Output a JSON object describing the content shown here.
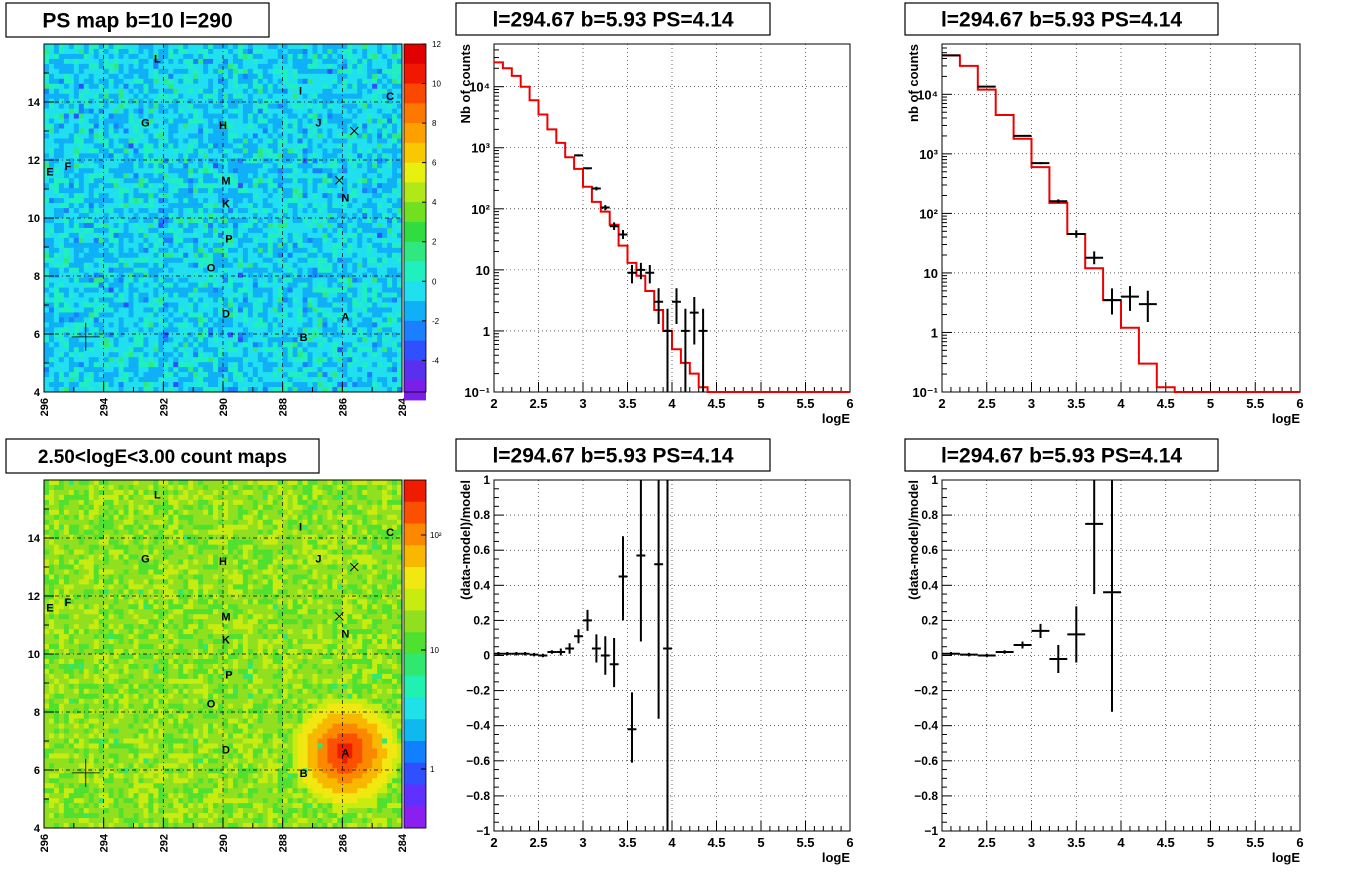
{
  "panels": [
    {
      "kind": "map",
      "title": "PS map b=10 l=290",
      "x_ticks": [
        "296",
        "294",
        "292",
        "290",
        "288",
        "286",
        "284"
      ],
      "y_ticks": [
        "4",
        "6",
        "8",
        "10",
        "12",
        "14"
      ],
      "colorbar_labels": [
        "12",
        "10",
        "8",
        "6",
        "4",
        "2",
        "0",
        "-2",
        "-4"
      ],
      "sources": [
        {
          "label": "L",
          "l": 292.2,
          "b": 15.5
        },
        {
          "label": "I",
          "l": 287.4,
          "b": 14.4
        },
        {
          "label": "C",
          "l": 284.4,
          "b": 14.2
        },
        {
          "label": "G",
          "l": 292.6,
          "b": 13.3
        },
        {
          "label": "H",
          "l": 290.0,
          "b": 13.2
        },
        {
          "label": "J",
          "l": 286.8,
          "b": 13.3
        },
        {
          "label": "E",
          "l": 295.8,
          "b": 11.6
        },
        {
          "label": "F",
          "l": 295.2,
          "b": 11.8
        },
        {
          "label": "M",
          "l": 289.9,
          "b": 11.3
        },
        {
          "label": "K",
          "l": 289.9,
          "b": 10.5
        },
        {
          "label": "N",
          "l": 285.9,
          "b": 10.7
        },
        {
          "label": "P",
          "l": 289.8,
          "b": 9.3
        },
        {
          "label": "O",
          "l": 290.4,
          "b": 8.3
        },
        {
          "label": "D",
          "l": 289.9,
          "b": 6.7
        },
        {
          "label": "A",
          "l": 285.9,
          "b": 6.6
        },
        {
          "label": "B",
          "l": 287.3,
          "b": 5.9
        }
      ],
      "markers": [
        {
          "symbol": "x",
          "l": 285.6,
          "b": 13.0
        },
        {
          "symbol": "x",
          "l": 286.1,
          "b": 11.3
        },
        {
          "symbol": "+",
          "l": 294.6,
          "b": 5.9
        }
      ]
    },
    {
      "kind": "spectrum",
      "title": "l=294.67 b=5.93 PS=4.14",
      "ylabel": "Nb of counts",
      "xlabel": "logE",
      "x_ticks": [
        "2",
        "2.5",
        "3",
        "3.5",
        "4",
        "4.5",
        "5",
        "5.5",
        "6"
      ],
      "y_ticks": [
        "10⁻¹",
        "1",
        "10",
        "10²",
        "10³",
        "10⁴"
      ],
      "chart_data": {
        "type": "line",
        "xlim": [
          2,
          6
        ],
        "ylim": [
          0.1,
          50000
        ],
        "log_y": true,
        "model_bin_width": 0.1,
        "model_color": "#ee0000",
        "model_x": [
          2.0,
          2.1,
          2.2,
          2.3,
          2.4,
          2.5,
          2.6,
          2.7,
          2.8,
          2.9,
          3.0,
          3.1,
          3.2,
          3.3,
          3.4,
          3.5,
          3.6,
          3.7,
          3.8,
          3.9,
          4.0,
          4.1,
          4.2,
          4.3,
          4.4,
          4.5,
          4.6,
          4.7,
          4.8,
          4.9,
          5.0,
          5.1,
          5.2,
          5.3,
          5.4,
          5.5,
          5.6,
          5.7,
          5.8,
          5.9
        ],
        "model_y": [
          25000,
          20000,
          15000,
          10000,
          6000,
          3500,
          2000,
          1200,
          700,
          450,
          230,
          130,
          90,
          55,
          25,
          13,
          8,
          4.5,
          2.2,
          1,
          0.5,
          0.3,
          0.2,
          0.12,
          0.1,
          0.1,
          0.1,
          0.1,
          0.1,
          0.1,
          0.1,
          0.1,
          0.1,
          0.1,
          0.1,
          0.1,
          0.1,
          0.1,
          0.1,
          0.1
        ],
        "data": [
          {
            "x": 2.95,
            "y": 750,
            "xerr": 0.05,
            "ylo": 720,
            "yhi": 780
          },
          {
            "x": 3.05,
            "y": 460,
            "xerr": 0.05,
            "ylo": 440,
            "yhi": 480
          },
          {
            "x": 3.15,
            "y": 215,
            "xerr": 0.05,
            "ylo": 200,
            "yhi": 230
          },
          {
            "x": 3.25,
            "y": 105,
            "xerr": 0.05,
            "ylo": 95,
            "yhi": 115
          },
          {
            "x": 3.35,
            "y": 52,
            "xerr": 0.05,
            "ylo": 45,
            "yhi": 60
          },
          {
            "x": 3.45,
            "y": 38,
            "xerr": 0.05,
            "ylo": 32,
            "yhi": 45
          },
          {
            "x": 3.55,
            "y": 9,
            "xerr": 0.05,
            "ylo": 6,
            "yhi": 12
          },
          {
            "x": 3.65,
            "y": 10,
            "xerr": 0.05,
            "ylo": 7,
            "yhi": 13
          },
          {
            "x": 3.75,
            "y": 9,
            "xerr": 0.05,
            "ylo": 6,
            "yhi": 12
          },
          {
            "x": 3.85,
            "y": 3,
            "xerr": 0.05,
            "ylo": 1.3,
            "yhi": 5
          },
          {
            "x": 3.95,
            "y": 1,
            "xerr": 0.05,
            "ylo": 0.1,
            "yhi": 2.3
          },
          {
            "x": 4.05,
            "y": 3,
            "xerr": 0.05,
            "ylo": 1.3,
            "yhi": 5
          },
          {
            "x": 4.15,
            "y": 1,
            "xerr": 0.05,
            "ylo": 0.1,
            "yhi": 2.3
          },
          {
            "x": 4.25,
            "y": 2,
            "xerr": 0.05,
            "ylo": 0.6,
            "yhi": 3.6
          },
          {
            "x": 4.35,
            "y": 1,
            "xerr": 0.05,
            "ylo": 0.1,
            "yhi": 2.3
          }
        ]
      }
    },
    {
      "kind": "spectrum",
      "title": "l=294.67 b=5.93 PS=4.14",
      "ylabel": "nb of counts",
      "xlabel": "logE",
      "x_ticks": [
        "2",
        "2.5",
        "3",
        "3.5",
        "4",
        "4.5",
        "5",
        "5.5",
        "6"
      ],
      "y_ticks": [
        "10⁻¹",
        "1",
        "10",
        "10²",
        "10³",
        "10⁴"
      ],
      "chart_data": {
        "type": "line",
        "xlim": [
          2,
          6
        ],
        "ylim": [
          0.1,
          70000
        ],
        "log_y": true,
        "model_bin_width": 0.2,
        "model_color": "#ee0000",
        "model_x": [
          2.0,
          2.2,
          2.4,
          2.6,
          2.8,
          3.0,
          3.2,
          3.4,
          3.6,
          3.8,
          4.0,
          4.2,
          4.4,
          4.6,
          4.8,
          5.0,
          5.2,
          5.4,
          5.6,
          5.8
        ],
        "model_y": [
          45000,
          30000,
          12000,
          4500,
          1800,
          600,
          150,
          45,
          12,
          3.5,
          1.2,
          0.3,
          0.12,
          0.1,
          0.1,
          0.1,
          0.1,
          0.1,
          0.1,
          0.1
        ],
        "data": [
          {
            "x": 2.1,
            "y": 45000,
            "xerr": 0.1,
            "ylo": 44500,
            "yhi": 45500
          },
          {
            "x": 2.5,
            "y": 13500,
            "xerr": 0.1,
            "ylo": 13200,
            "yhi": 13800
          },
          {
            "x": 2.9,
            "y": 2000,
            "xerr": 0.1,
            "ylo": 1950,
            "yhi": 2050
          },
          {
            "x": 3.1,
            "y": 700,
            "xerr": 0.1,
            "ylo": 670,
            "yhi": 730
          },
          {
            "x": 3.3,
            "y": 160,
            "xerr": 0.1,
            "ylo": 150,
            "yhi": 172
          },
          {
            "x": 3.5,
            "y": 45,
            "xerr": 0.1,
            "ylo": 39,
            "yhi": 52
          },
          {
            "x": 3.7,
            "y": 18,
            "xerr": 0.1,
            "ylo": 14,
            "yhi": 23
          },
          {
            "x": 3.9,
            "y": 3.5,
            "xerr": 0.1,
            "ylo": 2,
            "yhi": 5.5
          },
          {
            "x": 4.1,
            "y": 4,
            "xerr": 0.1,
            "ylo": 2.3,
            "yhi": 6
          },
          {
            "x": 4.3,
            "y": 3,
            "xerr": 0.1,
            "ylo": 1.5,
            "yhi": 5
          }
        ]
      }
    },
    {
      "kind": "map",
      "title": "2.50<logE<3.00 count maps",
      "x_ticks": [
        "296",
        "294",
        "292",
        "290",
        "288",
        "286",
        "284"
      ],
      "y_ticks": [
        "4",
        "6",
        "8",
        "10",
        "12",
        "14"
      ],
      "colorbar_labels": [
        "10²",
        "10",
        "1"
      ],
      "sources": [
        {
          "label": "L",
          "l": 292.2,
          "b": 15.5
        },
        {
          "label": "I",
          "l": 287.4,
          "b": 14.4
        },
        {
          "label": "C",
          "l": 284.4,
          "b": 14.2
        },
        {
          "label": "G",
          "l": 292.6,
          "b": 13.3
        },
        {
          "label": "H",
          "l": 290.0,
          "b": 13.2
        },
        {
          "label": "J",
          "l": 286.8,
          "b": 13.3
        },
        {
          "label": "E",
          "l": 295.8,
          "b": 11.6
        },
        {
          "label": "F",
          "l": 295.2,
          "b": 11.8
        },
        {
          "label": "M",
          "l": 289.9,
          "b": 11.3
        },
        {
          "label": "K",
          "l": 289.9,
          "b": 10.5
        },
        {
          "label": "N",
          "l": 285.9,
          "b": 10.7
        },
        {
          "label": "P",
          "l": 289.8,
          "b": 9.3
        },
        {
          "label": "O",
          "l": 290.4,
          "b": 8.3
        },
        {
          "label": "D",
          "l": 289.9,
          "b": 6.7
        },
        {
          "label": "A",
          "l": 285.9,
          "b": 6.6
        },
        {
          "label": "B",
          "l": 287.3,
          "b": 5.9
        }
      ],
      "markers": [
        {
          "symbol": "x",
          "l": 285.6,
          "b": 13.0
        },
        {
          "symbol": "x",
          "l": 286.1,
          "b": 11.3
        },
        {
          "symbol": "+",
          "l": 294.6,
          "b": 5.9
        }
      ]
    },
    {
      "kind": "residual",
      "title": "l=294.67 b=5.93 PS=4.14",
      "ylabel": "(data-model)/model",
      "xlabel": "logE",
      "x_ticks": [
        "2",
        "2.5",
        "3",
        "3.5",
        "4",
        "4.5",
        "5",
        "5.5",
        "6"
      ],
      "y_ticks": [
        "−1",
        "−0.8",
        "−0.6",
        "−0.4",
        "−0.2",
        "0",
        "0.2",
        "0.4",
        "0.6",
        "0.8",
        "1"
      ],
      "chart_data": {
        "type": "scatter",
        "xlim": [
          2,
          6
        ],
        "ylim": [
          -1,
          1
        ],
        "data": [
          {
            "x": 2.05,
            "y": 0.01,
            "xerr": 0.05,
            "ylo": 0.0,
            "yhi": 0.02
          },
          {
            "x": 2.15,
            "y": 0.01,
            "xerr": 0.05,
            "ylo": 0.0,
            "yhi": 0.02
          },
          {
            "x": 2.25,
            "y": 0.01,
            "xerr": 0.05,
            "ylo": 0.0,
            "yhi": 0.02
          },
          {
            "x": 2.35,
            "y": 0.01,
            "xerr": 0.05,
            "ylo": 0.0,
            "yhi": 0.02
          },
          {
            "x": 2.45,
            "y": 0.005,
            "xerr": 0.05,
            "ylo": -0.005,
            "yhi": 0.015
          },
          {
            "x": 2.55,
            "y": 0.0,
            "xerr": 0.05,
            "ylo": -0.01,
            "yhi": 0.01
          },
          {
            "x": 2.65,
            "y": 0.02,
            "xerr": 0.05,
            "ylo": 0.01,
            "yhi": 0.03
          },
          {
            "x": 2.75,
            "y": 0.02,
            "xerr": 0.05,
            "ylo": 0.0,
            "yhi": 0.04
          },
          {
            "x": 2.85,
            "y": 0.04,
            "xerr": 0.05,
            "ylo": 0.01,
            "yhi": 0.07
          },
          {
            "x": 2.95,
            "y": 0.11,
            "xerr": 0.05,
            "ylo": 0.07,
            "yhi": 0.15
          },
          {
            "x": 3.05,
            "y": 0.2,
            "xerr": 0.05,
            "ylo": 0.14,
            "yhi": 0.26
          },
          {
            "x": 3.15,
            "y": 0.04,
            "xerr": 0.05,
            "ylo": -0.04,
            "yhi": 0.12
          },
          {
            "x": 3.25,
            "y": 0.0,
            "xerr": 0.05,
            "ylo": -0.11,
            "yhi": 0.11
          },
          {
            "x": 3.35,
            "y": -0.05,
            "xerr": 0.05,
            "ylo": -0.18,
            "yhi": 0.1
          },
          {
            "x": 3.45,
            "y": 0.45,
            "xerr": 0.05,
            "ylo": 0.2,
            "yhi": 0.68
          },
          {
            "x": 3.55,
            "y": -0.42,
            "xerr": 0.05,
            "ylo": -0.61,
            "yhi": -0.21
          },
          {
            "x": 3.65,
            "y": 0.57,
            "xerr": 0.05,
            "ylo": 0.08,
            "yhi": 1.0
          },
          {
            "x": 3.85,
            "y": 0.52,
            "xerr": 0.05,
            "ylo": -0.36,
            "yhi": 1.0
          },
          {
            "x": 3.95,
            "y": 0.04,
            "xerr": 0.05,
            "ylo": -1.0,
            "yhi": 1.0
          }
        ]
      }
    },
    {
      "kind": "residual",
      "title": "l=294.67 b=5.93 PS=4.14",
      "ylabel": "(data-model)/model",
      "xlabel": "logE",
      "x_ticks": [
        "2",
        "2.5",
        "3",
        "3.5",
        "4",
        "4.5",
        "5",
        "5.5",
        "6"
      ],
      "y_ticks": [
        "−1",
        "−0.8",
        "−0.6",
        "−0.4",
        "−0.2",
        "0",
        "0.2",
        "0.4",
        "0.6",
        "0.8",
        "1"
      ],
      "chart_data": {
        "type": "scatter",
        "xlim": [
          2,
          6
        ],
        "ylim": [
          -1,
          1
        ],
        "data": [
          {
            "x": 2.1,
            "y": 0.01,
            "xerr": 0.1,
            "ylo": 0.0,
            "yhi": 0.02
          },
          {
            "x": 2.3,
            "y": 0.005,
            "xerr": 0.1,
            "ylo": -0.005,
            "yhi": 0.015
          },
          {
            "x": 2.5,
            "y": 0.0,
            "xerr": 0.1,
            "ylo": -0.01,
            "yhi": 0.01
          },
          {
            "x": 2.7,
            "y": 0.02,
            "xerr": 0.1,
            "ylo": 0.01,
            "yhi": 0.03
          },
          {
            "x": 2.9,
            "y": 0.06,
            "xerr": 0.1,
            "ylo": 0.04,
            "yhi": 0.08
          },
          {
            "x": 3.1,
            "y": 0.14,
            "xerr": 0.1,
            "ylo": 0.1,
            "yhi": 0.18
          },
          {
            "x": 3.3,
            "y": -0.02,
            "xerr": 0.1,
            "ylo": -0.1,
            "yhi": 0.06
          },
          {
            "x": 3.5,
            "y": 0.12,
            "xerr": 0.1,
            "ylo": -0.04,
            "yhi": 0.28
          },
          {
            "x": 3.7,
            "y": 0.75,
            "xerr": 0.1,
            "ylo": 0.35,
            "yhi": 1.0
          },
          {
            "x": 3.9,
            "y": 0.36,
            "xerr": 0.1,
            "ylo": -0.32,
            "yhi": 1.0
          }
        ]
      }
    }
  ]
}
